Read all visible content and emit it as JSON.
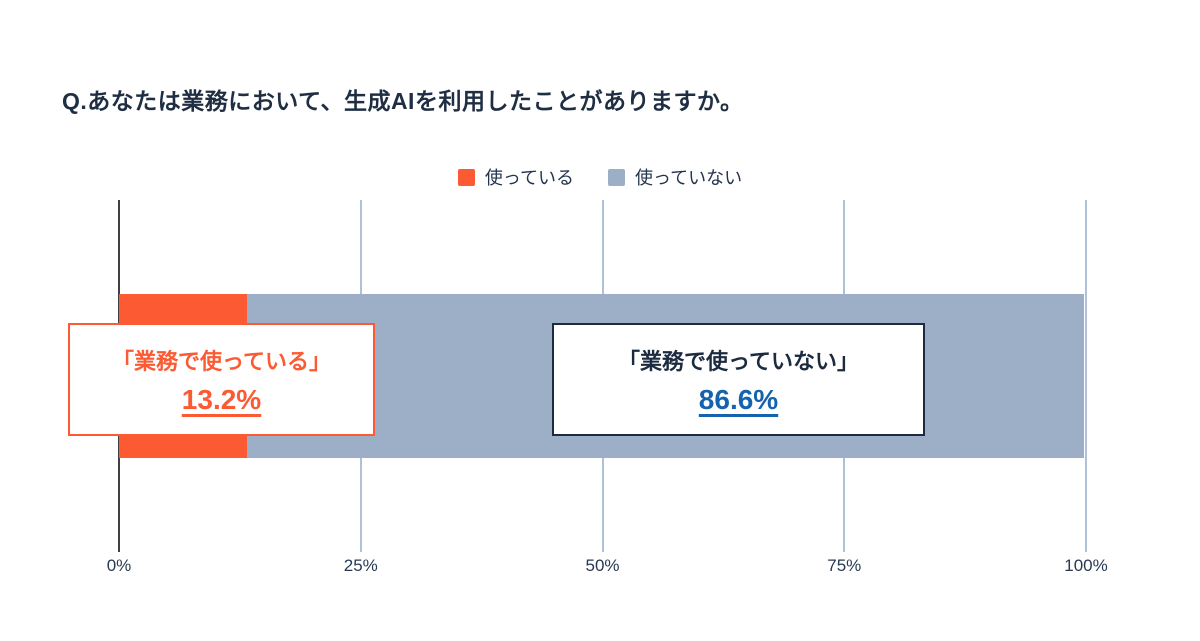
{
  "colors": {
    "using": "#fb5a32",
    "not_using": "#9dafc7",
    "title_text": "#1f2e43",
    "callout_not_using_border": "#1c2b40",
    "callout_not_using_value": "#1563ae",
    "gridline": "#aec1d8",
    "zero_axis": "#404040"
  },
  "chart_data": {
    "type": "bar",
    "orientation": "horizontal-stacked",
    "title": "Q.あなたは業務において、生成AIを利用したことがありますか。",
    "categories": [
      ""
    ],
    "series": [
      {
        "name": "使っている",
        "values": [
          13.2
        ],
        "color": "#fb5a32"
      },
      {
        "name": "使っていない",
        "values": [
          86.6
        ],
        "color": "#9dafc7"
      }
    ],
    "xlim": [
      0,
      100
    ],
    "x_ticks": [
      {
        "value": 0,
        "label": "0%"
      },
      {
        "value": 25,
        "label": "25%"
      },
      {
        "value": 50,
        "label": "50%"
      },
      {
        "value": 75,
        "label": "75%"
      },
      {
        "value": 100,
        "label": "100%"
      }
    ],
    "grid": true,
    "legend_position": "top",
    "annotations": [
      {
        "label": "「業務で使っている」",
        "value": "13.2%"
      },
      {
        "label": "「業務で使っていない」",
        "value": "86.6%"
      }
    ]
  },
  "legend": {
    "items": [
      {
        "label": "使っている"
      },
      {
        "label": "使っていない"
      }
    ]
  },
  "callouts": {
    "using": {
      "label": "「業務で使っている」",
      "value": "13.2%"
    },
    "not_using": {
      "label": "「業務で使っていない」",
      "value": "86.6%"
    }
  }
}
